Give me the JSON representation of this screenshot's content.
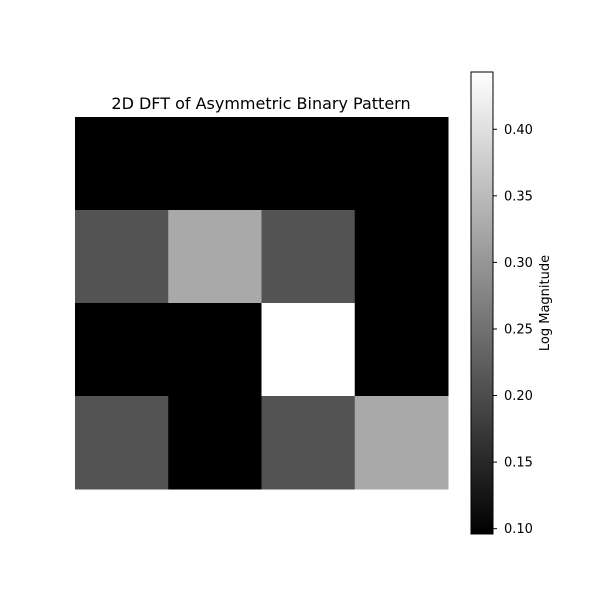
{
  "chart_data": {
    "type": "heatmap",
    "title": "2D DFT of Asymmetric Binary Pattern",
    "colormap": "gray",
    "rows": 4,
    "cols": 4,
    "values": [
      [
        0.096,
        0.096,
        0.096,
        0.096
      ],
      [
        0.209,
        0.326,
        0.209,
        0.096
      ],
      [
        0.096,
        0.096,
        0.443,
        0.096
      ],
      [
        0.209,
        0.096,
        0.209,
        0.326
      ]
    ],
    "colorbar": {
      "label": "Log Magnitude",
      "vmin": 0.096,
      "vmax": 0.443,
      "ticks": [
        0.1,
        0.15,
        0.2,
        0.25,
        0.3,
        0.35,
        0.4
      ],
      "tick_labels": [
        "0.10",
        "0.15",
        "0.20",
        "0.25",
        "0.30",
        "0.35",
        "0.40"
      ]
    },
    "axes_visible": false
  }
}
